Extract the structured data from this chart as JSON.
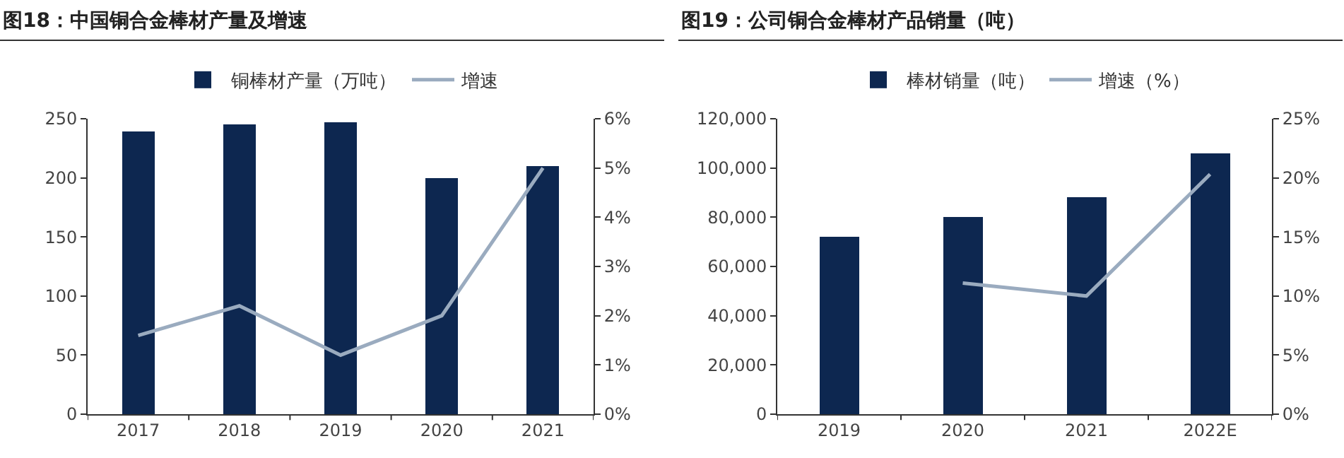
{
  "chart_data": [
    {
      "type": "bar",
      "title": "图18：中国铜合金棒材产量及增速",
      "categories": [
        "2017",
        "2018",
        "2019",
        "2020",
        "2021"
      ],
      "series": [
        {
          "name": "铜棒材产量（万吨）",
          "color": "#0d2750",
          "values": [
            239,
            245,
            247,
            200,
            210
          ]
        },
        {
          "name": "增速",
          "type": "line",
          "axis": "y2",
          "color": "#9aabbf",
          "values": [
            1.6,
            2.2,
            1.2,
            2.0,
            5.0
          ]
        }
      ],
      "ylim": [
        0,
        250
      ],
      "yticks": [
        0,
        50,
        100,
        150,
        200,
        250
      ],
      "y2lim": [
        0,
        6
      ],
      "y2ticks": [
        {
          "value": 0,
          "label": "0%"
        },
        {
          "value": 1,
          "label": "1%"
        },
        {
          "value": 2,
          "label": "2%"
        },
        {
          "value": 3,
          "label": "3%"
        },
        {
          "value": 4,
          "label": "4%"
        },
        {
          "value": 5,
          "label": "5%"
        },
        {
          "value": 6,
          "label": "6%"
        }
      ],
      "legend": "top",
      "grid": false,
      "marker": "none"
    },
    {
      "type": "bar",
      "title": "图19：公司铜合金棒材产品销量（吨）",
      "categories": [
        "2019",
        "2020",
        "2021",
        "2022E"
      ],
      "series": [
        {
          "name": "棒材销量（吨）",
          "color": "#0d2750",
          "values": [
            72000,
            80000,
            88000,
            106000
          ]
        },
        {
          "name": "增速（%）",
          "type": "line",
          "axis": "y2",
          "color": "#9aabbf",
          "values": [
            null,
            11.1,
            10.0,
            20.3
          ]
        }
      ],
      "ylim": [
        0,
        120000
      ],
      "yticks": [
        0,
        {
          "value": 20000,
          "label": "20,000"
        },
        {
          "value": 40000,
          "label": "40,000"
        },
        {
          "value": 60000,
          "label": "60,000"
        },
        {
          "value": 80000,
          "label": "80,000"
        },
        {
          "value": 100000,
          "label": "100,000"
        },
        {
          "value": 120000,
          "label": "120,000"
        }
      ],
      "y2lim": [
        0,
        25
      ],
      "y2ticks": [
        {
          "value": 0,
          "label": "0%"
        },
        {
          "value": 5,
          "label": "5%"
        },
        {
          "value": 10,
          "label": "10%"
        },
        {
          "value": 15,
          "label": "15%"
        },
        {
          "value": 20,
          "label": "20%"
        },
        {
          "value": 25,
          "label": "25%"
        }
      ],
      "legend": "top",
      "grid": false,
      "marker": "none"
    }
  ]
}
